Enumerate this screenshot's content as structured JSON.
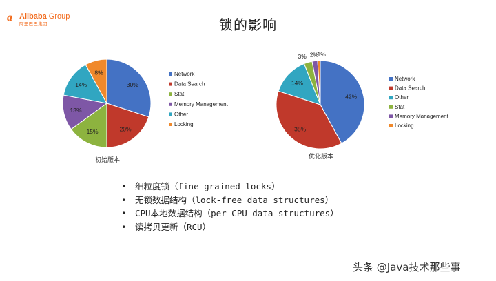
{
  "header": {
    "logo_mark": "a",
    "logo_name": "Alibaba",
    "logo_group": "Group",
    "logo_sub": "阿里巴巴集团",
    "title": "锁的影响"
  },
  "colors": {
    "Network": "#4472c4",
    "Data Search": "#c0392b",
    "Stat": "#8db33f",
    "Memory Management": "#7e57a6",
    "Other": "#31a6c1",
    "Locking": "#f0892b",
    "brand": "#f26a1b"
  },
  "chart_data": [
    {
      "type": "pie",
      "caption": "初始版本",
      "legend_position": "right",
      "slices": [
        {
          "label": "Network",
          "value": 30,
          "text": "30%"
        },
        {
          "label": "Data Search",
          "value": 20,
          "text": "20%"
        },
        {
          "label": "Stat",
          "value": 15,
          "text": "15%"
        },
        {
          "label": "Memory Management",
          "value": 13,
          "text": "13%"
        },
        {
          "label": "Other",
          "value": 14,
          "text": "14%"
        },
        {
          "label": "Locking",
          "value": 8,
          "text": "8%"
        }
      ]
    },
    {
      "type": "pie",
      "caption": "优化版本",
      "legend_position": "right",
      "slices": [
        {
          "label": "Network",
          "value": 42,
          "text": "42%"
        },
        {
          "label": "Data Search",
          "value": 38,
          "text": "38%"
        },
        {
          "label": "Other",
          "value": 14,
          "text": "14%"
        },
        {
          "label": "Stat",
          "value": 3,
          "text": "3%"
        },
        {
          "label": "Memory Management",
          "value": 2,
          "text": "2%"
        },
        {
          "label": "Locking",
          "value": 1,
          "text": "1%"
        }
      ]
    }
  ],
  "bullets": [
    "细粒度锁（fine-grained locks）",
    "无锁数据结构（lock-free data structures）",
    "CPU本地数据结构（per-CPU data structures）",
    "读拷贝更新（RCU）"
  ],
  "bullet_symbol": "•",
  "watermark": "头条 @Java技术那些事"
}
